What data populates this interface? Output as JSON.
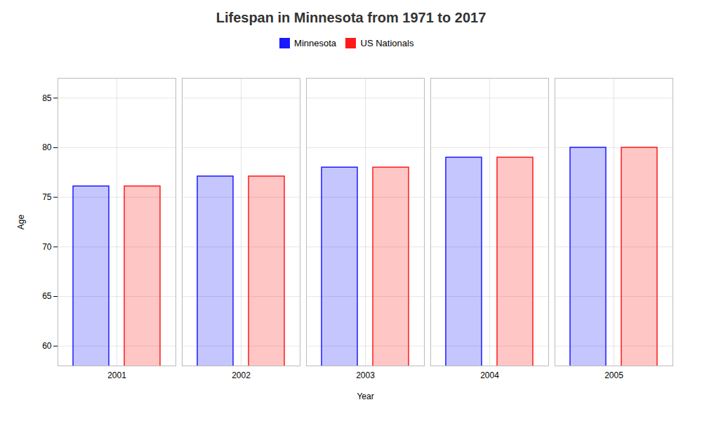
{
  "chart_data": {
    "type": "bar",
    "title": "Lifespan in Minnesota from 1971 to 2017",
    "xlabel": "Year",
    "ylabel": "Age",
    "categories": [
      "2001",
      "2002",
      "2003",
      "2004",
      "2005"
    ],
    "series": [
      {
        "name": "Minnesota",
        "color": "#1a1aff",
        "values": [
          76.1,
          77.1,
          78.0,
          79.0,
          80.0
        ]
      },
      {
        "name": "US Nationals",
        "color": "#ff1a1a",
        "values": [
          76.1,
          77.1,
          78.0,
          79.0,
          80.0
        ]
      }
    ],
    "ylim": [
      58,
      87
    ],
    "yticks": [
      60,
      65,
      70,
      75,
      80,
      85
    ],
    "grid": true,
    "legend": "top"
  }
}
